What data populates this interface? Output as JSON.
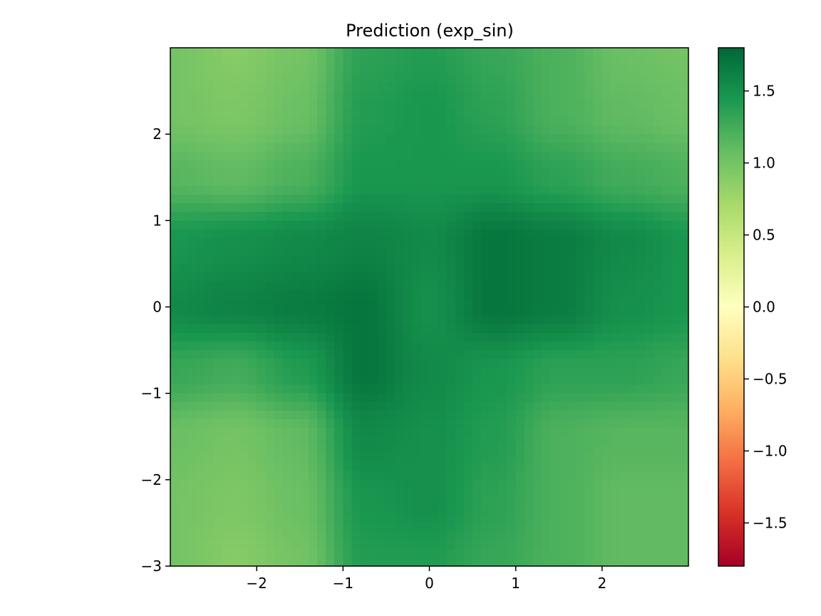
{
  "chart_data": {
    "type": "heatmap",
    "title": "Prediction (exp_sin)",
    "xlabel": "",
    "ylabel": "",
    "xlim": [
      -3,
      3
    ],
    "ylim": [
      -3,
      3
    ],
    "x_ticks": [
      -2,
      -1,
      0,
      1,
      2
    ],
    "x_tick_labels": [
      "−2",
      "−1",
      "0",
      "1",
      "2"
    ],
    "y_ticks": [
      -3,
      -2,
      -1,
      0,
      1,
      2
    ],
    "y_tick_labels": [
      "−3",
      "−2",
      "−1",
      "0",
      "1",
      "2"
    ],
    "colorbar": {
      "colormap": "RdYlGn",
      "range": [
        -1.8,
        1.8
      ],
      "ticks": [
        -1.5,
        -1.0,
        -0.5,
        0.0,
        0.5,
        1.0,
        1.5
      ],
      "tick_labels": [
        "−1.5",
        "−1.0",
        "−0.5",
        "0.0",
        "0.5",
        "1.0",
        "1.5"
      ]
    },
    "colormap_stops": [
      "#a50026",
      "#d73027",
      "#f46d43",
      "#fdae61",
      "#fee08b",
      "#ffffbf",
      "#d9ef8b",
      "#a6d96a",
      "#66bd63",
      "#1a9850",
      "#006837"
    ],
    "grid": false,
    "x": [
      -3.0,
      -2.25,
      -1.5,
      -0.75,
      0.0,
      0.75,
      1.5,
      2.25,
      3.0
    ],
    "y": [
      -3.0,
      -2.25,
      -1.5,
      -0.75,
      0.0,
      0.75,
      1.5,
      2.25,
      3.0
    ],
    "z": [
      [
        1.0,
        0.9,
        1.0,
        1.4,
        1.4,
        1.3,
        1.2,
        1.1,
        1.1
      ],
      [
        1.0,
        0.95,
        1.05,
        1.45,
        1.5,
        1.35,
        1.2,
        1.1,
        1.1
      ],
      [
        1.05,
        1.0,
        1.1,
        1.55,
        1.5,
        1.4,
        1.2,
        1.15,
        1.15
      ],
      [
        1.3,
        1.25,
        1.4,
        1.7,
        1.55,
        1.45,
        1.35,
        1.35,
        1.3
      ],
      [
        1.55,
        1.6,
        1.65,
        1.7,
        1.5,
        1.7,
        1.65,
        1.5,
        1.45
      ],
      [
        1.45,
        1.5,
        1.55,
        1.6,
        1.55,
        1.7,
        1.65,
        1.55,
        1.45
      ],
      [
        1.15,
        1.1,
        1.2,
        1.45,
        1.45,
        1.45,
        1.35,
        1.25,
        1.2
      ],
      [
        1.0,
        0.95,
        1.05,
        1.4,
        1.45,
        1.35,
        1.2,
        1.1,
        1.05
      ],
      [
        1.0,
        0.9,
        1.0,
        1.35,
        1.4,
        1.3,
        1.2,
        1.05,
        1.0
      ]
    ]
  }
}
